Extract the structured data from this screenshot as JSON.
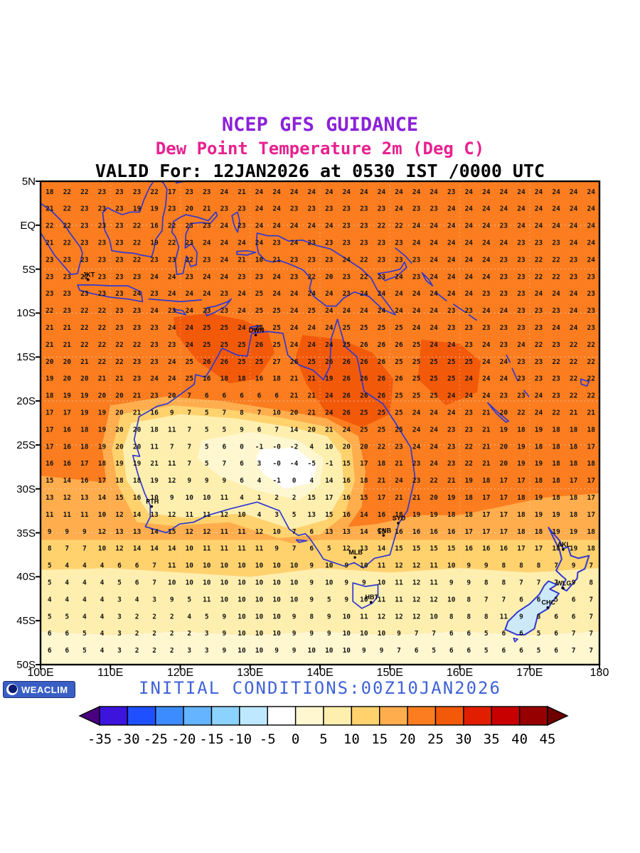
{
  "header": {
    "line1": "NCEP GFS GUIDANCE",
    "line2": "Dew Point Temperature 2m (Deg C)",
    "line3": "VALID For: 12JAN2026 at 0530 IST /0000 UTC"
  },
  "footer": {
    "logo_text": "WEACLIM",
    "initial_conditions": "INITIAL CONDITIONS:00Z10JAN2026"
  },
  "axes": {
    "y_labels": [
      {
        "text": "5N",
        "lat": 5
      },
      {
        "text": "EQ",
        "lat": 0
      },
      {
        "text": "5S",
        "lat": -5
      },
      {
        "text": "10S",
        "lat": -10
      },
      {
        "text": "15S",
        "lat": -15
      },
      {
        "text": "20S",
        "lat": -20
      },
      {
        "text": "25S",
        "lat": -25
      },
      {
        "text": "30S",
        "lat": -30
      },
      {
        "text": "35S",
        "lat": -35
      },
      {
        "text": "40S",
        "lat": -40
      },
      {
        "text": "45S",
        "lat": -45
      },
      {
        "text": "50S",
        "lat": -50
      }
    ],
    "x_labels": [
      {
        "text": "100E",
        "lon": 100
      },
      {
        "text": "110E",
        "lon": 110
      },
      {
        "text": "120E",
        "lon": 120
      },
      {
        "text": "130E",
        "lon": 130
      },
      {
        "text": "140E",
        "lon": 140
      },
      {
        "text": "150E",
        "lon": 150
      },
      {
        "text": "160E",
        "lon": 160
      },
      {
        "text": "170E",
        "lon": 170
      },
      {
        "text": "180",
        "lon": 180
      }
    ]
  },
  "chart_data": {
    "type": "heatmap",
    "title": "NCEP GFS GUIDANCE",
    "subtitle": "Dew Point Temperature 2m (Deg C)",
    "valid": "12JAN2026 at 0530 IST /0000 UTC",
    "initial": "00Z10JAN2026",
    "units": "Deg C",
    "lon_range": [
      100,
      180
    ],
    "lat_range": [
      -50,
      5
    ],
    "grid": {
      "lon_start": 101.3,
      "lon_step": 2.5,
      "lat_start": 3.8,
      "lat_step": -1.933,
      "rows": [
        "18 22 22 23 23 23 22 17 23 23 24 21 24 24 24 24 24 24 24 24 24 24 24 23 24 24 24 24 24 24 24 24",
        "21 22 23 23 23 19 19 23 20 21 23 23 24 24 23 23 23 23 23 23 24 23 23 24 24 24 24 24 24 24 24 24",
        "22 22 23 23 23 22 16 22 23 23 24 23 24 24 24 24 24 23 23 22 22 24 24 24 24 24 23 24 24 24 24 24",
        "21 22 23 23 23 22 19 22 23 24 24 24 24 23 24 23 23 23 23 23 23 24 24 24 24 24 24 23 23 23 24 24",
        "23 23 23 23 23 22 23 23 22 23 24 21 10 21 23 23 23 24 22 23 23 23 24 24 24 24 23 23 22 22 23 24",
        "23 23 22 23 23 23 24 24 23 24 24 23 23 24 23 22 20 23 22 23 24 23 24 24 24 24 23 23 22 22 23 23",
        "23 23 23 23 23 24 23 24 24 24 23 24 25 24 24 24 24 23 24 24 24 24 24 24 24 23 23 23 24 24 24 23",
        "22 23 22 22 23 23 24 23 24 23 23 24 25 25 24 25 24 24 24 24 24 24 24 23 23 24 24 23 23 23 24 23",
        "21 21 22 22 23 23 23 24 24 25 25 24 25 25 24 24 24 25 25 25 25 24 24 23 23 23 23 23 23 24 24 23",
        "21 21 22 22 22 22 23 23 24 25 25 25 26 25 24 24 24 25 26 26 26 25 24 24 23 24 23 24 22 23 22 22",
        "20 20 21 22 22 23 23 24 25 26 26 25 25 27 26 25 26 26 26 26 25 25 25 25 25 24 24 23 23 22 22 22",
        "19 20 20 21 21 23 24 24 25 16 18 18 16 18 21 21 19 26 26 26 26 25 25 25 24 24 24 23 23 23 22 22",
        "18 19 19 20 20 21 23 20 7 6 6 6 6 6 21 21 24 26 26 26 25 25 25 24 24 24 23 23 24 23 22 22",
        "17 17 19 19 20 21 16 9 7 5 7 8 7 10 20 21 24 26 25 25 25 24 24 24 23 21 20 22 24 22 21 21",
        "17 16 18 19 20 20 18 11 7 5 5 9 6 7 14 20 21 24 25 25 25 24 24 23 23 21 19 18 19 18 18 18",
        "17 16 18 19 20 20 11 7 7 5 6 0 -1 -0 -2 4 10 20 20 22 23 24 24 23 22 21 20 19 18 18 18 17",
        "16 16 17 18 19 19 21 11 7 5 7 6 3 -0 -4 -5 -1 15 17 18 21 23 24 23 22 21 20 19 19 18 18 18",
        "15 14 16 17 18 18 19 12 9 9 9 6 4 -1 0 4 14 16 18 21 24 23 22 21 19 18 17 17 18 18 17 17",
        "13 12 13 14 15 16 10 9 10 10 11 4 1 2 2 15 17 16 15 17 21 21 20 19 18 17 17 18 19 18 18 17",
        "11 11 11 10 12 14 13 12 11 11 12 10 4 3 5 13 15 16 14 16 18 19 19 18 18 17 17 18 19 19 18 17",
        "9 9 9 12 13 13 14 15 12 12 11 11 12 10 7 6 13 13 14 15 16 16 16 16 17 17 17 18 18 19 19 18",
        "8 7 7 10 12 14 14 14 10 11 11 11 11 9 7 6 5 12 13 14 15 15 15 15 16 16 16 17 17 18 19 18",
        "5 4 4 4 6 6 7 11 10 10 10 10 10 10 10 9 10 9 10 11 12 12 11 10 9 9 8 8 8 7 9 7",
        "5 4 4 4 5 6 7 10 10 10 10 10 10 10 10 9 10 9 9 10 11 12 11 9 9 8 8 7 7 7 9 8",
        "4 4 4 4 3 4 3 9 5 11 10 10 10 10 10 9 5 9 10 11 11 12 12 10 8 7 7 6 6 5 6 7",
        "5 5 4 4 3 2 2 2 4 5 9 10 10 10 9 8 9 10 11 12 12 12 10 8 8 8 11 9 8 6 6 7",
        "6 6 5 4 3 2 2 2 2 3 9 10 10 10 9 9 9 10 10 10 9 7 7 6 6 5 6 6 5 6 7 7",
        "6 6 5 4 3 2 2 2 3 3 9 10 10 9 9 10 10 10 9 9 7 6 5 6 6 5 6 6 5 6 7 7"
      ]
    },
    "colorbar": {
      "tick_labels": [
        "-35",
        "-30",
        "-25",
        "-20",
        "-15",
        "-10",
        "-5",
        "0",
        "5",
        "10",
        "15",
        "20",
        "25",
        "30",
        "35",
        "40",
        "45"
      ],
      "colors": [
        "#4B0082",
        "#3C14DC",
        "#1E50FF",
        "#3C8CFF",
        "#64B4FF",
        "#8CD2FF",
        "#BEE8FF",
        "#FFFFFF",
        "#FFF7D0",
        "#FFEFAE",
        "#FFD26E",
        "#FFAD4D",
        "#FB7D1F",
        "#F25A0A",
        "#E11E00",
        "#C80000",
        "#960000",
        "#6E0000"
      ]
    },
    "cities": [
      {
        "code": "JKT",
        "lon": 106.8,
        "lat": -6.2
      },
      {
        "code": "DWN",
        "lon": 130.8,
        "lat": -12.5
      },
      {
        "code": "PTH",
        "lon": 115.9,
        "lat": -32.0
      },
      {
        "code": "SYD",
        "lon": 151.2,
        "lat": -33.9
      },
      {
        "code": "CNB",
        "lon": 149.1,
        "lat": -35.3
      },
      {
        "code": "MLB",
        "lon": 145.0,
        "lat": -37.8
      },
      {
        "code": "HBT",
        "lon": 147.3,
        "lat": -42.9
      },
      {
        "code": "AKL",
        "lon": 174.8,
        "lat": -36.9
      },
      {
        "code": "WLG",
        "lon": 174.8,
        "lat": -41.3
      },
      {
        "code": "CHC",
        "lon": 172.6,
        "lat": -43.5
      }
    ]
  }
}
